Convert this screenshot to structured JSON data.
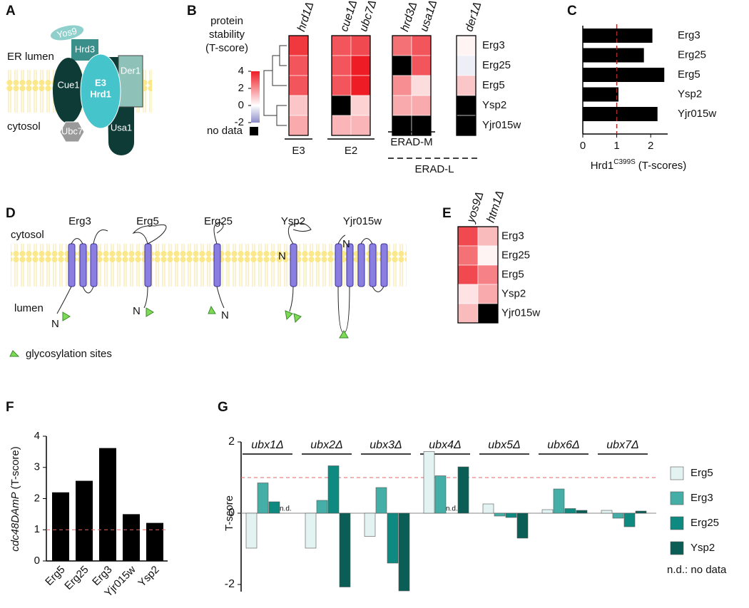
{
  "panel_labels": [
    "A",
    "B",
    "C",
    "D",
    "E",
    "F",
    "G"
  ],
  "diagram_a": {
    "er_lumen": "ER lumen",
    "cytosol": "cytosol",
    "yos9": "Yos9",
    "hrd3": "Hrd3",
    "cue1": "Cue1",
    "e3": "E3",
    "hrd1": "Hrd1",
    "der1": "Der1",
    "ubc7": "Ubc7",
    "usa1": "Usa1"
  },
  "diagram_d": {
    "proteins": [
      "Erg3",
      "Erg5",
      "Erg25",
      "Ysp2",
      "Yjr015w"
    ],
    "cytosol": "cytosol",
    "lumen": "lumen",
    "n_terminus": "N",
    "legend": "glycosylation sites"
  },
  "chart_data": [
    {
      "type": "heatmap",
      "colorbar_title": [
        "protein",
        "stability",
        "(T-score)"
      ],
      "clim": [
        -2,
        4
      ],
      "cticks": [
        4,
        2,
        0,
        -2
      ],
      "colors": {
        "low": "#8c8cc8",
        "mid": "#ffffff",
        "high": "#ee1c24"
      },
      "missing_color": "#000000",
      "missing_label": "no data",
      "columns": [
        "hrd1Δ",
        "cue1Δ",
        "ubc7Δ",
        "hrd3Δ",
        "usa1Δ",
        "der1Δ"
      ],
      "rows": [
        "Erg3",
        "Erg25",
        "Erg5",
        "Ysp2",
        "Yjr015w"
      ],
      "values": [
        [
          3.5,
          3,
          3.2,
          2.5,
          3,
          0.2
        ],
        [
          3,
          3,
          4,
          null,
          3,
          -0.3
        ],
        [
          3,
          3,
          4,
          2,
          0.6,
          1
        ],
        [
          1,
          null,
          0.8,
          1.5,
          1.5,
          null
        ],
        [
          1.5,
          1.3,
          1.3,
          null,
          null,
          null
        ]
      ],
      "groups": [
        "E3",
        "E2",
        "ERAD-M",
        "ERAD-L"
      ]
    },
    {
      "type": "barh",
      "categories": [
        "Erg3",
        "Erg25",
        "Erg5",
        "Ysp2",
        "Yjr015w"
      ],
      "values": [
        2.05,
        1.8,
        2.4,
        1.05,
        2.2
      ],
      "color": "#000000",
      "xlim": [
        0,
        2.5
      ],
      "xticks": [
        0,
        1,
        2
      ],
      "ref_line": {
        "value": 1,
        "color": "#a52a2a"
      },
      "xlabel": {
        "text": "Hrd1",
        "superscript": "C399S",
        "suffix": "(T-scores)"
      }
    },
    {
      "type": "heatmap",
      "clim": [
        -2,
        4
      ],
      "colors": {
        "low": "#8c8cc8",
        "mid": "#ffffff",
        "high": "#ee1c24"
      },
      "missing_color": "#000000",
      "columns": [
        "yos9Δ",
        "htm1Δ"
      ],
      "rows": [
        "Erg3",
        "Erg25",
        "Erg5",
        "Ysp2",
        "Yjr015w"
      ],
      "values": [
        [
          3.2,
          1.2
        ],
        [
          2.5,
          0.2
        ],
        [
          3.2,
          2.2
        ],
        [
          0.5,
          1.5
        ],
        [
          1.2,
          null
        ]
      ]
    },
    {
      "type": "bar",
      "categories": [
        "Erg5",
        "Erg25",
        "Erg3",
        "Yjr015w",
        "Ysp2"
      ],
      "values": [
        2.2,
        2.57,
        3.62,
        1.5,
        1.22
      ],
      "color": "#000000",
      "ylim": [
        0,
        4
      ],
      "yticks": [
        0,
        1,
        2,
        3,
        4
      ],
      "ref_line": {
        "value": 1,
        "color": "#e06666"
      },
      "ylabel": {
        "italic": "cdc48DAmP",
        "text": "(T-score)"
      }
    },
    {
      "type": "grouped_bar",
      "categories": [
        "ubx1Δ",
        "ubx2Δ",
        "ubx3Δ",
        "ubx4Δ",
        "ubx5Δ",
        "ubx6Δ",
        "ubx7Δ"
      ],
      "series": [
        {
          "name": "Erg5",
          "color": "#e2f3f2",
          "values": [
            -0.98,
            -0.98,
            -0.65,
            1.73,
            0.26,
            0.1,
            0.08
          ]
        },
        {
          "name": "Erg3",
          "color": "#45aea6",
          "values": [
            0.85,
            0.36,
            0.72,
            1.05,
            -0.08,
            0.68,
            -0.14
          ]
        },
        {
          "name": "Erg25",
          "color": "#0f8a80",
          "values": [
            0.32,
            1.33,
            -1.4,
            null,
            -0.12,
            0.13,
            -0.38
          ]
        },
        {
          "name": "Ysp2",
          "color": "#0b5e55",
          "values": [
            null,
            -2.07,
            -2.18,
            1.3,
            -0.7,
            0.08,
            0.06
          ]
        }
      ],
      "ylim": [
        -2.2,
        2
      ],
      "yticks": [
        -2,
        0,
        2
      ],
      "ylabel": "T-score",
      "ref_line": {
        "value": 1,
        "color": "#e06666"
      },
      "missing_label": "n.d.",
      "legend_note": "n.d.: no data"
    }
  ]
}
